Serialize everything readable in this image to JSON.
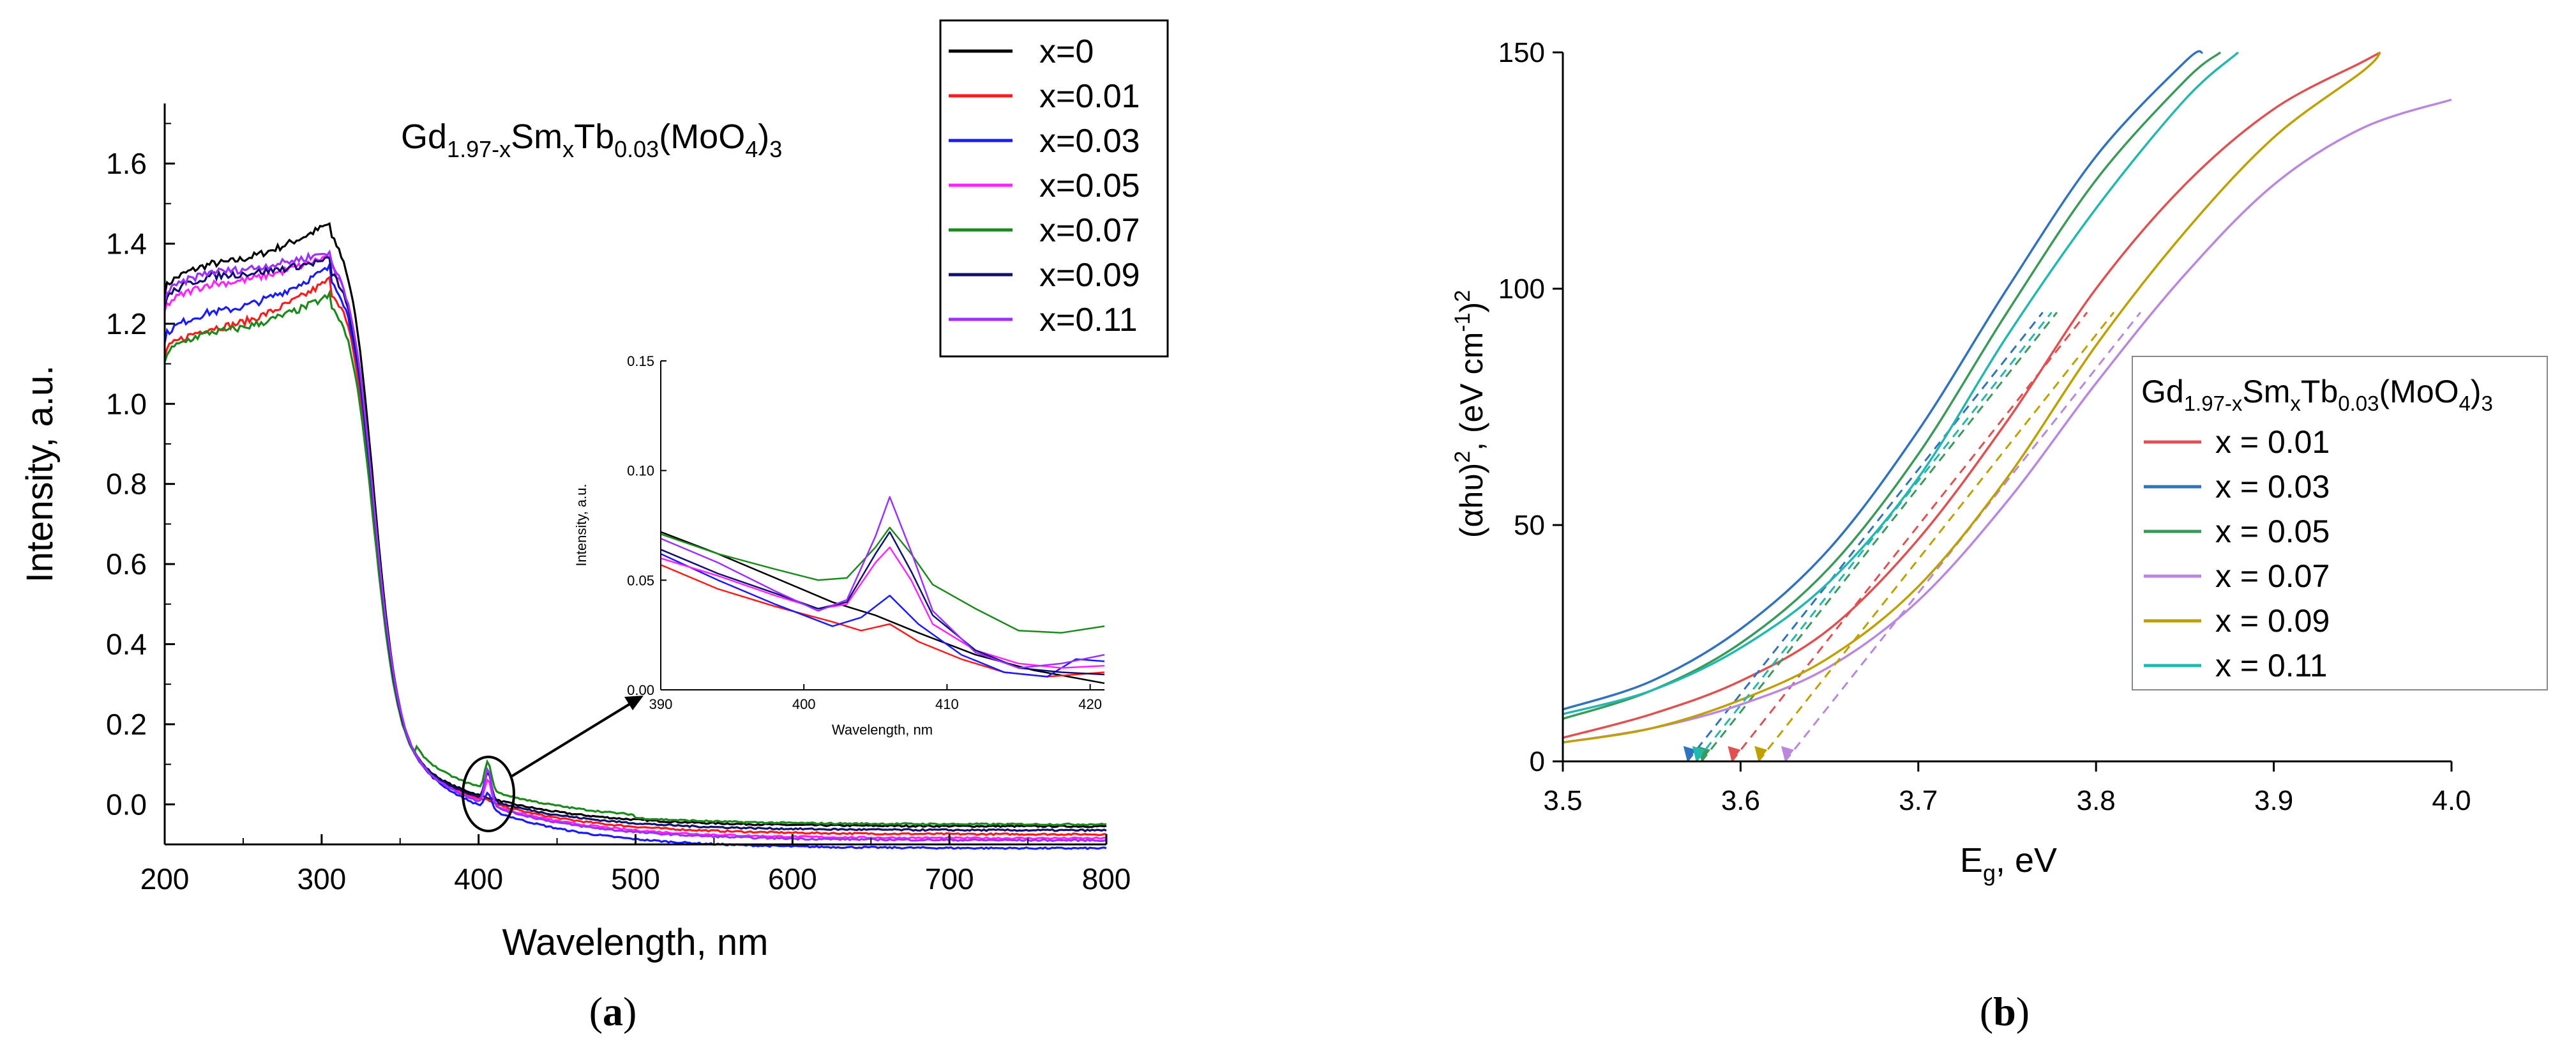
{
  "panels": {
    "a": {
      "label_open": "(",
      "label_letter": "a",
      "label_close": ")",
      "title": {
        "base": "Gd",
        "sub1": "1.97-x",
        "mid1": "Sm",
        "sub2": "x",
        "mid2": "Tb",
        "sub3": "0.03",
        "mid3": "(MoO",
        "sub4": "4",
        "end": ")",
        "sub5": "3"
      }
    },
    "b": {
      "label_open": "(",
      "label_letter": "b",
      "label_close": ")",
      "ylabel": {
        "p1": "(αhυ)",
        "s1": "2",
        "p2": ", (eV cm",
        "s2": "-1",
        "p3": ")",
        "s3": "2"
      },
      "xlabel": {
        "p1": "E",
        "sub": "g",
        "p2": ", eV"
      },
      "legend_title": {
        "base": "Gd",
        "sub1": "1.97-x",
        "mid1": "Sm",
        "sub2": "x",
        "mid2": "Tb",
        "sub3": "0.03",
        "mid3": "(MoO",
        "sub4": "4",
        "end": ")",
        "sub5": "3"
      }
    }
  },
  "chart_data": [
    {
      "id": "main",
      "type": "line",
      "title": "Gd1.97-xSmxTb0.03(MoO4)3",
      "xlabel": "Wavelength, nm",
      "ylabel": "Intensity, a.u.",
      "xlim": [
        200,
        800
      ],
      "ylim": [
        -0.1,
        1.75
      ],
      "xticks": [
        200,
        300,
        400,
        500,
        600,
        700,
        800
      ],
      "xtick_labels": [
        "200",
        "300",
        "400",
        "500",
        "600",
        "700",
        "800"
      ],
      "yticks": [
        0.0,
        0.2,
        0.4,
        0.6,
        0.8,
        1.0,
        1.2,
        1.4,
        1.6
      ],
      "ytick_labels": [
        "0.0",
        "0.2",
        "0.4",
        "0.6",
        "0.8",
        "1.0",
        "1.2",
        "1.4",
        "1.6"
      ],
      "legend_position": "top-right (outside plot)",
      "series": [
        {
          "name": "x=0",
          "color": "#000000",
          "start": 1.28,
          "peak": 1.45,
          "plateau_offset": 0.0,
          "tail": -0.055
        },
        {
          "name": "x=0.01",
          "color": "#ff1a1a",
          "start": 1.12,
          "peak": 1.31,
          "tail": -0.075
        },
        {
          "name": "x=0.03",
          "color": "#1a1aff",
          "start": 1.16,
          "peak": 1.34,
          "tail": -0.11
        },
        {
          "name": "x=0.05",
          "color": "#ff22ff",
          "start": 1.23,
          "peak": 1.37,
          "tail": -0.085
        },
        {
          "name": "x=0.07",
          "color": "#1a8a1a",
          "start": 1.11,
          "peak": 1.27,
          "tail": -0.05
        },
        {
          "name": "x=0.09",
          "color": "#101070",
          "start": 1.25,
          "peak": 1.36,
          "tail": -0.065
        },
        {
          "name": "x=0.11",
          "color": "#9b30ff",
          "start": 1.26,
          "peak": 1.38,
          "tail": -0.09
        }
      ]
    },
    {
      "id": "inset",
      "type": "line",
      "xlabel": "Wavelength, nm",
      "ylabel": "Intensity, a.u.",
      "xlim": [
        390,
        421
      ],
      "ylim": [
        0.0,
        0.15
      ],
      "xticks": [
        390,
        400,
        410,
        420
      ],
      "xtick_labels": [
        "390",
        "400",
        "410",
        "420"
      ],
      "yticks": [
        0.0,
        0.05,
        0.1,
        0.15
      ],
      "ytick_labels": [
        "0.00",
        "0.05",
        "0.10",
        "0.15"
      ],
      "series": [
        {
          "name": "x=0",
          "color": "#000000",
          "x": [
            390,
            394,
            398,
            402,
            405,
            408,
            412,
            416,
            421
          ],
          "y": [
            0.072,
            0.062,
            0.051,
            0.04,
            0.034,
            0.026,
            0.016,
            0.009,
            0.003
          ]
        },
        {
          "name": "x=0.01",
          "color": "#ff1a1a",
          "x": [
            390,
            394,
            398,
            402,
            404,
            406,
            408,
            411,
            414,
            417,
            421
          ],
          "y": [
            0.057,
            0.046,
            0.038,
            0.031,
            0.027,
            0.03,
            0.022,
            0.014,
            0.008,
            0.006,
            0.008
          ]
        },
        {
          "name": "x=0.03",
          "color": "#1a1aff",
          "x": [
            390,
            394,
            398,
            402,
            404,
            406,
            408,
            411,
            414,
            417,
            419,
            421
          ],
          "y": [
            0.062,
            0.05,
            0.039,
            0.029,
            0.033,
            0.043,
            0.03,
            0.016,
            0.008,
            0.006,
            0.014,
            0.013
          ]
        },
        {
          "name": "x=0.05",
          "color": "#ff22ff",
          "x": [
            390,
            394,
            398,
            401,
            403,
            405,
            406,
            407.5,
            409,
            412,
            415,
            418,
            421
          ],
          "y": [
            0.06,
            0.052,
            0.043,
            0.037,
            0.039,
            0.058,
            0.065,
            0.05,
            0.03,
            0.018,
            0.012,
            0.01,
            0.011
          ]
        },
        {
          "name": "x=0.07",
          "color": "#1a8a1a",
          "x": [
            390,
            394,
            398,
            401,
            403,
            405,
            406,
            407.5,
            409,
            412,
            415,
            418,
            421
          ],
          "y": [
            0.071,
            0.062,
            0.055,
            0.05,
            0.051,
            0.065,
            0.074,
            0.062,
            0.048,
            0.037,
            0.027,
            0.026,
            0.029
          ]
        },
        {
          "name": "x=0.09",
          "color": "#101070",
          "x": [
            390,
            394,
            398,
            401,
            403,
            405,
            406,
            407.5,
            409,
            412,
            415,
            418,
            421
          ],
          "y": [
            0.064,
            0.053,
            0.044,
            0.037,
            0.04,
            0.062,
            0.072,
            0.054,
            0.034,
            0.018,
            0.01,
            0.008,
            0.007
          ]
        },
        {
          "name": "x=0.11",
          "color": "#9b30ff",
          "x": [
            390,
            394,
            398,
            401,
            403,
            405,
            406,
            407.5,
            409,
            412,
            415,
            418,
            421
          ],
          "y": [
            0.069,
            0.058,
            0.045,
            0.036,
            0.041,
            0.07,
            0.088,
            0.063,
            0.036,
            0.017,
            0.01,
            0.012,
            0.016
          ]
        }
      ]
    },
    {
      "id": "tauc",
      "type": "line",
      "xlabel": "Eg, eV",
      "ylabel": "(αhυ)2, (eV cm-1)2",
      "xlim": [
        3.5,
        4.0
      ],
      "ylim": [
        0,
        150
      ],
      "xticks": [
        3.5,
        3.6,
        3.7,
        3.8,
        3.9,
        4.0
      ],
      "xtick_labels": [
        "3.5",
        "3.6",
        "3.7",
        "3.8",
        "3.9",
        "4.0"
      ],
      "yticks": [
        0,
        50,
        100,
        150
      ],
      "ytick_labels": [
        "0",
        "50",
        "100",
        "150"
      ],
      "legend_position": "right (overlapping plot)",
      "series": [
        {
          "name": "x = 0.01",
          "color": "#e05050",
          "x": [
            3.5,
            3.55,
            3.6,
            3.65,
            3.7,
            3.75,
            3.8,
            3.85,
            3.9,
            3.95,
            3.96
          ],
          "y": [
            5,
            10,
            17,
            28,
            47,
            72,
            100,
            122,
            138,
            148,
            150
          ],
          "eg": 3.595
        },
        {
          "name": "x = 0.03",
          "color": "#2f72c0",
          "x": [
            3.5,
            3.55,
            3.6,
            3.65,
            3.7,
            3.75,
            3.8,
            3.85,
            3.86
          ],
          "y": [
            11,
            17,
            28,
            45,
            70,
            100,
            128,
            148,
            150
          ],
          "eg": 3.57
        },
        {
          "name": "x = 0.05",
          "color": "#3a9a5a",
          "x": [
            3.5,
            3.55,
            3.6,
            3.65,
            3.7,
            3.75,
            3.8,
            3.85,
            3.87
          ],
          "y": [
            9,
            15,
            25,
            41,
            65,
            95,
            123,
            144,
            150
          ],
          "eg": 3.578
        },
        {
          "name": "x = 0.07",
          "color": "#b987e0",
          "x": [
            3.5,
            3.55,
            3.6,
            3.65,
            3.7,
            3.75,
            3.8,
            3.85,
            3.9,
            3.95,
            4.0
          ],
          "y": [
            4,
            7,
            12,
            20,
            34,
            55,
            80,
            103,
            122,
            134,
            140
          ],
          "eg": 3.625
        },
        {
          "name": "x = 0.09",
          "color": "#c0a000",
          "x": [
            3.5,
            3.55,
            3.6,
            3.65,
            3.7,
            3.75,
            3.8,
            3.85,
            3.9,
            3.95,
            3.96
          ],
          "y": [
            4,
            7,
            13,
            22,
            37,
            60,
            88,
            112,
            132,
            146,
            150
          ],
          "eg": 3.61
        },
        {
          "name": "x = 0.11",
          "color": "#22b8b0",
          "x": [
            3.5,
            3.55,
            3.6,
            3.65,
            3.7,
            3.75,
            3.8,
            3.85,
            3.88
          ],
          "y": [
            10,
            15,
            24,
            38,
            60,
            90,
            117,
            140,
            150
          ],
          "eg": 3.575
        }
      ]
    }
  ]
}
